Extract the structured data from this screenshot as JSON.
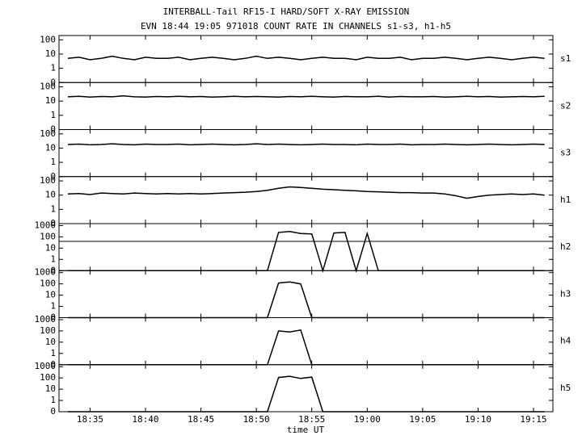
{
  "chart_data": {
    "type": "line",
    "title": "INTERBALL-Tail RF15-I HARD/SOFT X-RAY EMISSION",
    "subtitle": "EVN 18:44 19:05 971018  COUNT RATE IN CHANNELS s1-s3, h1-h5",
    "xlabel": "time UT",
    "yscale": "symlog",
    "color": "#000000",
    "xlim": [
      1112.2,
      1156.75
    ],
    "xticks": [
      {
        "value": 1115,
        "label": "18:35"
      },
      {
        "value": 1120,
        "label": "18:40"
      },
      {
        "value": 1125,
        "label": "18:45"
      },
      {
        "value": 1130,
        "label": "18:50"
      },
      {
        "value": 1135,
        "label": "18:55"
      },
      {
        "value": 1140,
        "label": "19:00"
      },
      {
        "value": 1145,
        "label": "19:05"
      },
      {
        "value": 1150,
        "label": "19:10"
      },
      {
        "value": 1155,
        "label": "19:15"
      }
    ],
    "x": [
      1113,
      1114,
      1115,
      1116,
      1117,
      1118,
      1119,
      1120,
      1121,
      1122,
      1123,
      1124,
      1125,
      1126,
      1127,
      1128,
      1129,
      1130,
      1131,
      1132,
      1133,
      1134,
      1135,
      1136,
      1137,
      1138,
      1139,
      1140,
      1141,
      1142,
      1143,
      1144,
      1145,
      1146,
      1147,
      1148,
      1149,
      1150,
      1151,
      1152,
      1153,
      1154,
      1155,
      1156
    ],
    "panels": [
      {
        "name": "s1",
        "ylim": [
          0,
          200
        ],
        "yticks": [
          0,
          1,
          10,
          100
        ],
        "values": [
          5,
          6,
          4,
          5,
          7,
          5,
          4,
          6,
          5,
          5,
          6,
          4,
          5,
          6,
          5,
          4,
          5,
          7,
          5,
          6,
          5,
          4,
          5,
          6,
          5,
          5,
          4,
          6,
          5,
          5,
          6,
          4,
          5,
          5,
          6,
          5,
          4,
          5,
          6,
          5,
          4,
          5,
          6,
          5
        ]
      },
      {
        "name": "s2",
        "ylim": [
          0,
          200
        ],
        "yticks": [
          0,
          1,
          10,
          100
        ],
        "values": [
          20,
          22,
          19,
          21,
          20,
          23,
          20,
          19,
          21,
          20,
          22,
          20,
          21,
          19,
          20,
          22,
          20,
          21,
          20,
          19,
          21,
          20,
          22,
          20,
          19,
          21,
          20,
          20,
          22,
          19,
          21,
          20,
          20,
          21,
          19,
          20,
          22,
          20,
          21,
          19,
          20,
          21,
          20,
          22
        ]
      },
      {
        "name": "s3",
        "ylim": [
          0,
          200
        ],
        "yticks": [
          0,
          1,
          10,
          100
        ],
        "values": [
          18,
          19,
          17,
          18,
          20,
          18,
          17,
          19,
          18,
          18,
          19,
          17,
          18,
          19,
          18,
          17,
          18,
          20,
          18,
          19,
          18,
          17,
          18,
          19,
          18,
          18,
          17,
          19,
          18,
          18,
          19,
          17,
          18,
          18,
          19,
          18,
          17,
          18,
          19,
          18,
          17,
          18,
          19,
          18
        ]
      },
      {
        "name": "h1",
        "ylim": [
          0,
          200
        ],
        "yticks": [
          0,
          1,
          10,
          100
        ],
        "values": [
          12,
          13,
          11,
          14,
          13,
          12,
          14,
          13,
          12,
          13,
          12,
          13,
          12,
          13,
          14,
          15,
          16,
          18,
          22,
          30,
          38,
          34,
          30,
          26,
          24,
          22,
          20,
          18,
          17,
          16,
          15,
          15,
          14,
          14,
          12,
          9,
          6,
          8,
          10,
          11,
          12,
          11,
          12,
          10
        ]
      },
      {
        "name": "h2",
        "ylim": [
          0,
          1500
        ],
        "yticks": [
          0,
          1,
          10,
          100,
          1000
        ],
        "level": 40,
        "values": [
          0,
          0,
          0,
          0,
          0,
          0,
          0,
          0,
          0,
          0,
          0,
          0,
          0,
          0,
          0,
          0,
          0,
          0,
          0,
          250,
          300,
          200,
          180,
          0,
          220,
          250,
          0,
          200,
          0,
          0,
          0,
          0,
          0,
          0,
          0,
          0,
          0,
          0,
          0,
          0,
          0,
          0,
          0,
          0
        ]
      },
      {
        "name": "h3",
        "ylim": [
          0,
          1500
        ],
        "yticks": [
          0,
          1,
          10,
          100,
          1000
        ],
        "values": [
          0,
          0,
          0,
          0,
          0,
          0,
          0,
          0,
          0,
          0,
          0,
          0,
          0,
          0,
          0,
          0,
          0,
          0,
          0,
          120,
          150,
          100,
          0,
          0,
          0,
          0,
          0,
          0,
          0,
          0,
          0,
          0,
          0,
          0,
          0,
          0,
          0,
          0,
          0,
          0,
          0,
          0,
          0,
          0
        ]
      },
      {
        "name": "h4",
        "ylim": [
          0,
          1500
        ],
        "yticks": [
          0,
          1,
          10,
          100,
          1000
        ],
        "values": [
          0,
          0,
          0,
          0,
          0,
          0,
          0,
          0,
          0,
          0,
          0,
          0,
          0,
          0,
          0,
          0,
          0,
          0,
          0,
          100,
          80,
          120,
          0,
          0,
          0,
          0,
          0,
          0,
          0,
          0,
          0,
          0,
          0,
          0,
          0,
          0,
          0,
          0,
          0,
          0,
          0,
          0,
          0,
          0
        ]
      },
      {
        "name": "h5",
        "ylim": [
          0,
          1500
        ],
        "yticks": [
          0,
          1,
          10,
          100,
          1000
        ],
        "values": [
          0,
          0,
          0,
          0,
          0,
          0,
          0,
          0,
          0,
          0,
          0,
          0,
          0,
          0,
          0,
          0,
          0,
          0,
          0,
          110,
          140,
          90,
          120,
          0,
          0,
          0,
          0,
          0,
          0,
          0,
          0,
          0,
          0,
          0,
          0,
          0,
          0,
          0,
          0,
          0,
          0,
          0,
          0,
          0
        ]
      }
    ]
  }
}
